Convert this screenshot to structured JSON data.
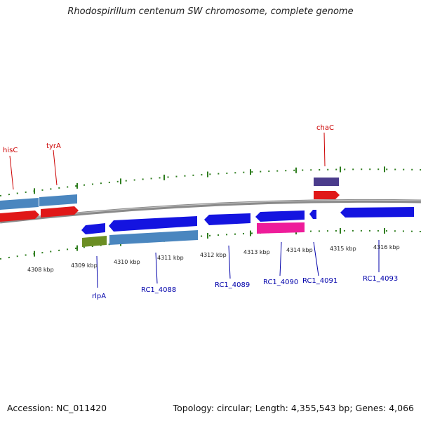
{
  "title": "Rhodospirillum centenum SW chromosome, complete genome",
  "footer": {
    "accession": "Accession: NC_011420",
    "summary": "Topology: circular; Length: 4,355,543 bp; Genes: 4,066"
  },
  "ticks": [
    {
      "label": "4308 kbp"
    },
    {
      "label": "4309 kbp"
    },
    {
      "label": "4310 kbp"
    },
    {
      "label": "4311 kbp"
    },
    {
      "label": "4312 kbp"
    },
    {
      "label": "4313 kbp"
    },
    {
      "label": "4314 kbp"
    },
    {
      "label": "4315 kbp"
    },
    {
      "label": "4316 kbp"
    }
  ],
  "upper_gene_labels": [
    {
      "text": "hisC",
      "color": "#cc0000"
    },
    {
      "text": "tyrA",
      "color": "#cc0000"
    },
    {
      "text": "chaC",
      "color": "#cc0000"
    }
  ],
  "lower_gene_labels": [
    {
      "text": "rlpA",
      "color": "#0000aa"
    },
    {
      "text": "RC1_4088",
      "color": "#0000aa"
    },
    {
      "text": "RC1_4089",
      "color": "#0000aa"
    },
    {
      "text": "RC1_4090",
      "color": "#0000aa"
    },
    {
      "text": "RC1_4091",
      "color": "#0000aa"
    },
    {
      "text": "RC1_4093",
      "color": "#0000aa"
    }
  ],
  "colors": {
    "backbone": "#8a8a8a",
    "tick": "#2e7d1e",
    "cds_blue": "#1414e0",
    "cds_steel": "#4a86bf",
    "cds_red": "#e01818",
    "cds_olive": "#6b8e23",
    "cds_magenta": "#ee1c9a",
    "cds_purple": "#4b3c8c"
  }
}
